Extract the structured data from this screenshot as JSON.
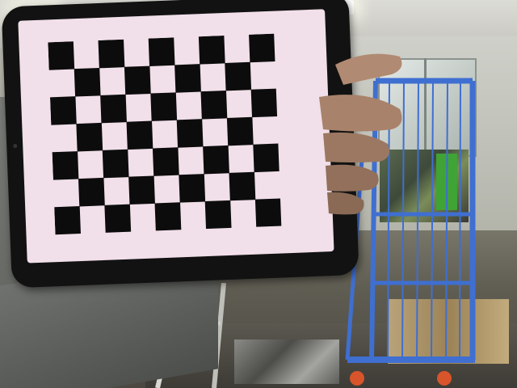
{
  "scene": {
    "description_type": "photograph",
    "checkerboard": {
      "rows": 7,
      "cols": 9
    },
    "colors": {
      "screen": "#f1dfe9",
      "square": "#0c0c0c",
      "cart_blue": "#3f6fd0",
      "cart_wheel": "#d8542a",
      "green_object": "#3fa336"
    }
  }
}
